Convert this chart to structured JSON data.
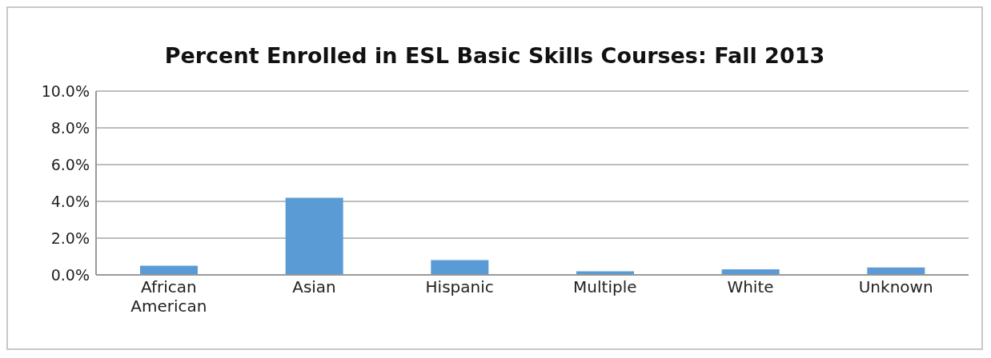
{
  "chart_data": {
    "type": "bar",
    "title": "Percent Enrolled in ESL Basic Skills Courses: Fall 2013",
    "categories": [
      "African American",
      "Asian",
      "Hispanic",
      "Multiple",
      "White",
      "Unknown"
    ],
    "values": [
      0.5,
      4.2,
      0.8,
      0.2,
      0.3,
      0.4
    ],
    "color": "#5b9bd5",
    "ylim": [
      0,
      10
    ],
    "yticks": [
      {
        "value": 0,
        "label": "0.0%"
      },
      {
        "value": 2,
        "label": "2.0%"
      },
      {
        "value": 4,
        "label": "4.0%"
      },
      {
        "value": 6,
        "label": "6.0%"
      },
      {
        "value": 8,
        "label": "8.0%"
      },
      {
        "value": 10,
        "label": "10.0%"
      }
    ],
    "grid": "y",
    "legend": false
  }
}
